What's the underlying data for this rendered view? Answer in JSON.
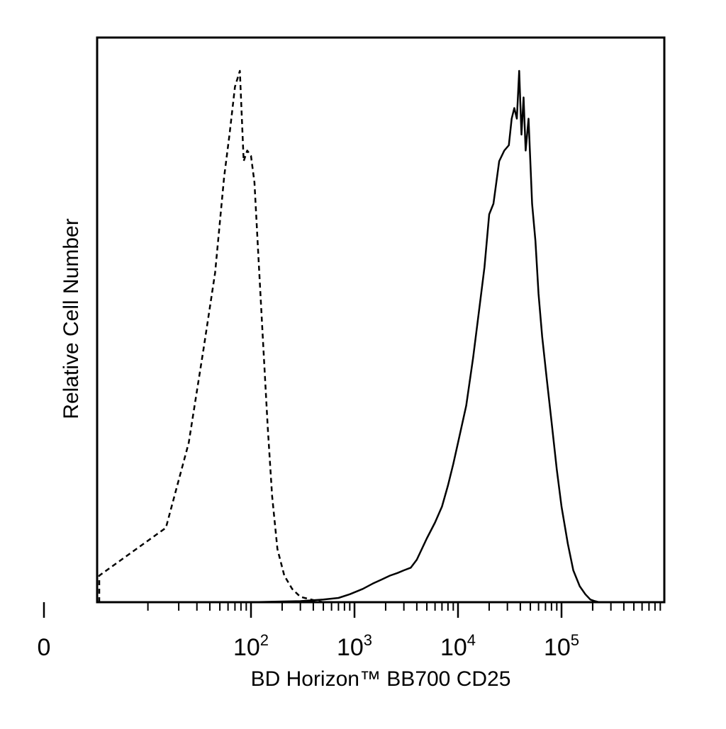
{
  "chart_data": {
    "type": "line",
    "xlabel": "BD Horizon™ BB700 CD25",
    "ylabel": "Relative Cell Number",
    "xscale": "biexponential (linear near 0, log above ~10^2)",
    "xlim": [
      -250,
      262144
    ],
    "ylim": [
      0,
      1.0
    ],
    "grid": false,
    "legend": "none",
    "x_ticks": [
      {
        "value": 0,
        "base": "0",
        "exp": ""
      },
      {
        "value": 100,
        "base": "10",
        "exp": "2"
      },
      {
        "value": 1000,
        "base": "10",
        "exp": "3"
      },
      {
        "value": 10000,
        "base": "10",
        "exp": "4"
      },
      {
        "value": 100000,
        "base": "10",
        "exp": "5"
      }
    ],
    "series": [
      {
        "line_style": "dashed",
        "color": "#000000",
        "x": [
          -150,
          -80,
          -40,
          0,
          15,
          25,
          35,
          45,
          55,
          62,
          70,
          78,
          85,
          92,
          100,
          108,
          118,
          130,
          145,
          160,
          180,
          210,
          250,
          300,
          400,
          500
        ],
        "y": [
          0.0,
          0.0,
          0.01,
          0.05,
          0.14,
          0.3,
          0.48,
          0.62,
          0.8,
          0.88,
          0.97,
          1.0,
          0.83,
          0.85,
          0.84,
          0.79,
          0.65,
          0.5,
          0.33,
          0.2,
          0.1,
          0.05,
          0.025,
          0.01,
          0.004,
          0.0
        ]
      },
      {
        "line_style": "solid",
        "color": "#000000",
        "x": [
          -100,
          0,
          100,
          300,
          500,
          700,
          900,
          1200,
          1500,
          1800,
          2200,
          2600,
          3000,
          3500,
          4000,
          5000,
          6000,
          7000,
          8000,
          9000,
          10000,
          12000,
          14000,
          16000,
          18000,
          20000,
          22000,
          25000,
          28000,
          31000,
          33000,
          35000,
          37000,
          39000,
          41000,
          43000,
          45000,
          48000,
          52000,
          56000,
          60000,
          65000,
          72000,
          80000,
          90000,
          100000,
          115000,
          130000,
          150000,
          170000,
          190000,
          210000,
          230000
        ],
        "y": [
          0.0,
          0.0,
          0.0,
          0.002,
          0.005,
          0.008,
          0.015,
          0.025,
          0.035,
          0.042,
          0.05,
          0.055,
          0.06,
          0.065,
          0.08,
          0.12,
          0.15,
          0.18,
          0.22,
          0.26,
          0.3,
          0.37,
          0.46,
          0.55,
          0.63,
          0.73,
          0.75,
          0.83,
          0.85,
          0.86,
          0.91,
          0.93,
          0.91,
          1.0,
          0.88,
          0.95,
          0.85,
          0.91,
          0.75,
          0.68,
          0.58,
          0.5,
          0.42,
          0.34,
          0.25,
          0.18,
          0.11,
          0.06,
          0.03,
          0.015,
          0.005,
          0.002,
          0.0
        ]
      }
    ]
  }
}
